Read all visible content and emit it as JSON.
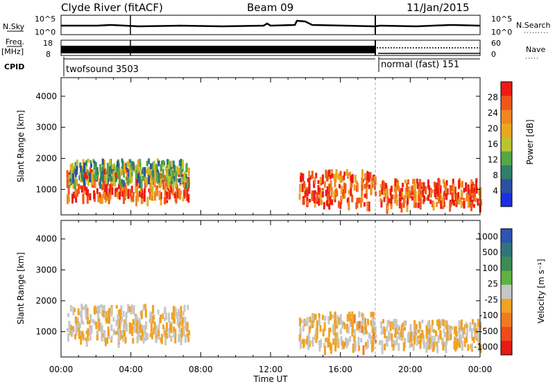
{
  "header": {
    "station": "Clyde River (fitACF)",
    "beam": "Beam 09",
    "date": "11/Jan/2015"
  },
  "summary_panels": {
    "nsky": {
      "label": "N.Sky",
      "ticks": [
        "10^5",
        "10^0"
      ]
    },
    "nsearch": {
      "label": "N.Search",
      "ticks": [
        "10^5",
        "10^0"
      ]
    },
    "freq": {
      "label_line1": "Freq.",
      "label_line2": "[MHz]",
      "ticks": [
        "18",
        "8"
      ]
    },
    "nave": {
      "label": "Nave",
      "ticks": [
        "60",
        "0"
      ]
    },
    "cpid": {
      "label": "CPID",
      "modes": [
        "twofsound 3503",
        "normal (fast) 151"
      ]
    }
  },
  "colors": {
    "power_scale": [
      "#1c2fe0",
      "#2b52a0",
      "#2f7f6c",
      "#55a845",
      "#b8c531",
      "#eaa821",
      "#f08722",
      "#f0561c",
      "#ee1b14"
    ],
    "velocity_scale": [
      "#2e54b4",
      "#31757a",
      "#3d8c54",
      "#5fb23f",
      "#c6c6c6",
      "#f0a224",
      "#ef7b21",
      "#ee4a1c",
      "#e81a14"
    ]
  },
  "chart_data": [
    {
      "type": "heatmap",
      "title": "",
      "ylabel": "Slant Range [km]",
      "xlabel": "",
      "yticks": [
        "1000",
        "2000",
        "3000",
        "4000"
      ],
      "ylim": [
        180,
        4600
      ],
      "xlim_hours": [
        0,
        24
      ],
      "colorbar": {
        "label": "Power [dB]",
        "ticks": [
          "4",
          "8",
          "12",
          "16",
          "20",
          "24",
          "28"
        ],
        "range": [
          0,
          32
        ]
      },
      "series": [
        {
          "t_start": 0.3,
          "t_end": 7.3,
          "r_center": 1250,
          "r_width": 700,
          "level": 26
        },
        {
          "t_start": 0.4,
          "t_end": 7.2,
          "r_center": 1650,
          "r_width": 500,
          "level": 12
        },
        {
          "t_start": 13.6,
          "t_end": 18.0,
          "r_center": 1100,
          "r_width": 800,
          "level": 27
        },
        {
          "t_start": 18.2,
          "t_end": 24.0,
          "r_center": 950,
          "r_width": 600,
          "level": 27
        }
      ]
    },
    {
      "type": "heatmap",
      "title": "",
      "ylabel": "Slant Range [km]",
      "xlabel": "Time UT",
      "xticks": [
        "00:00",
        "04:00",
        "08:00",
        "12:00",
        "16:00",
        "20:00",
        "00:00"
      ],
      "yticks": [
        "1000",
        "2000",
        "3000",
        "4000"
      ],
      "ylim": [
        180,
        4600
      ],
      "xlim_hours": [
        0,
        24
      ],
      "colorbar": {
        "label": "Velocity [m s⁻¹]",
        "ticks": [
          "1000",
          "500",
          "100",
          "25",
          "-25",
          "-100",
          "-500",
          "-1000"
        ],
        "range": [
          -1000,
          1000
        ]
      },
      "series": [
        {
          "t_start": 0.3,
          "t_end": 7.3,
          "r_center": 1350,
          "r_width": 800,
          "level": -100
        },
        {
          "t_start": 13.6,
          "t_end": 18.0,
          "r_center": 1100,
          "r_width": 800,
          "level": -150
        },
        {
          "t_start": 18.2,
          "t_end": 24.0,
          "r_center": 1000,
          "r_width": 600,
          "level": -100
        }
      ]
    }
  ]
}
